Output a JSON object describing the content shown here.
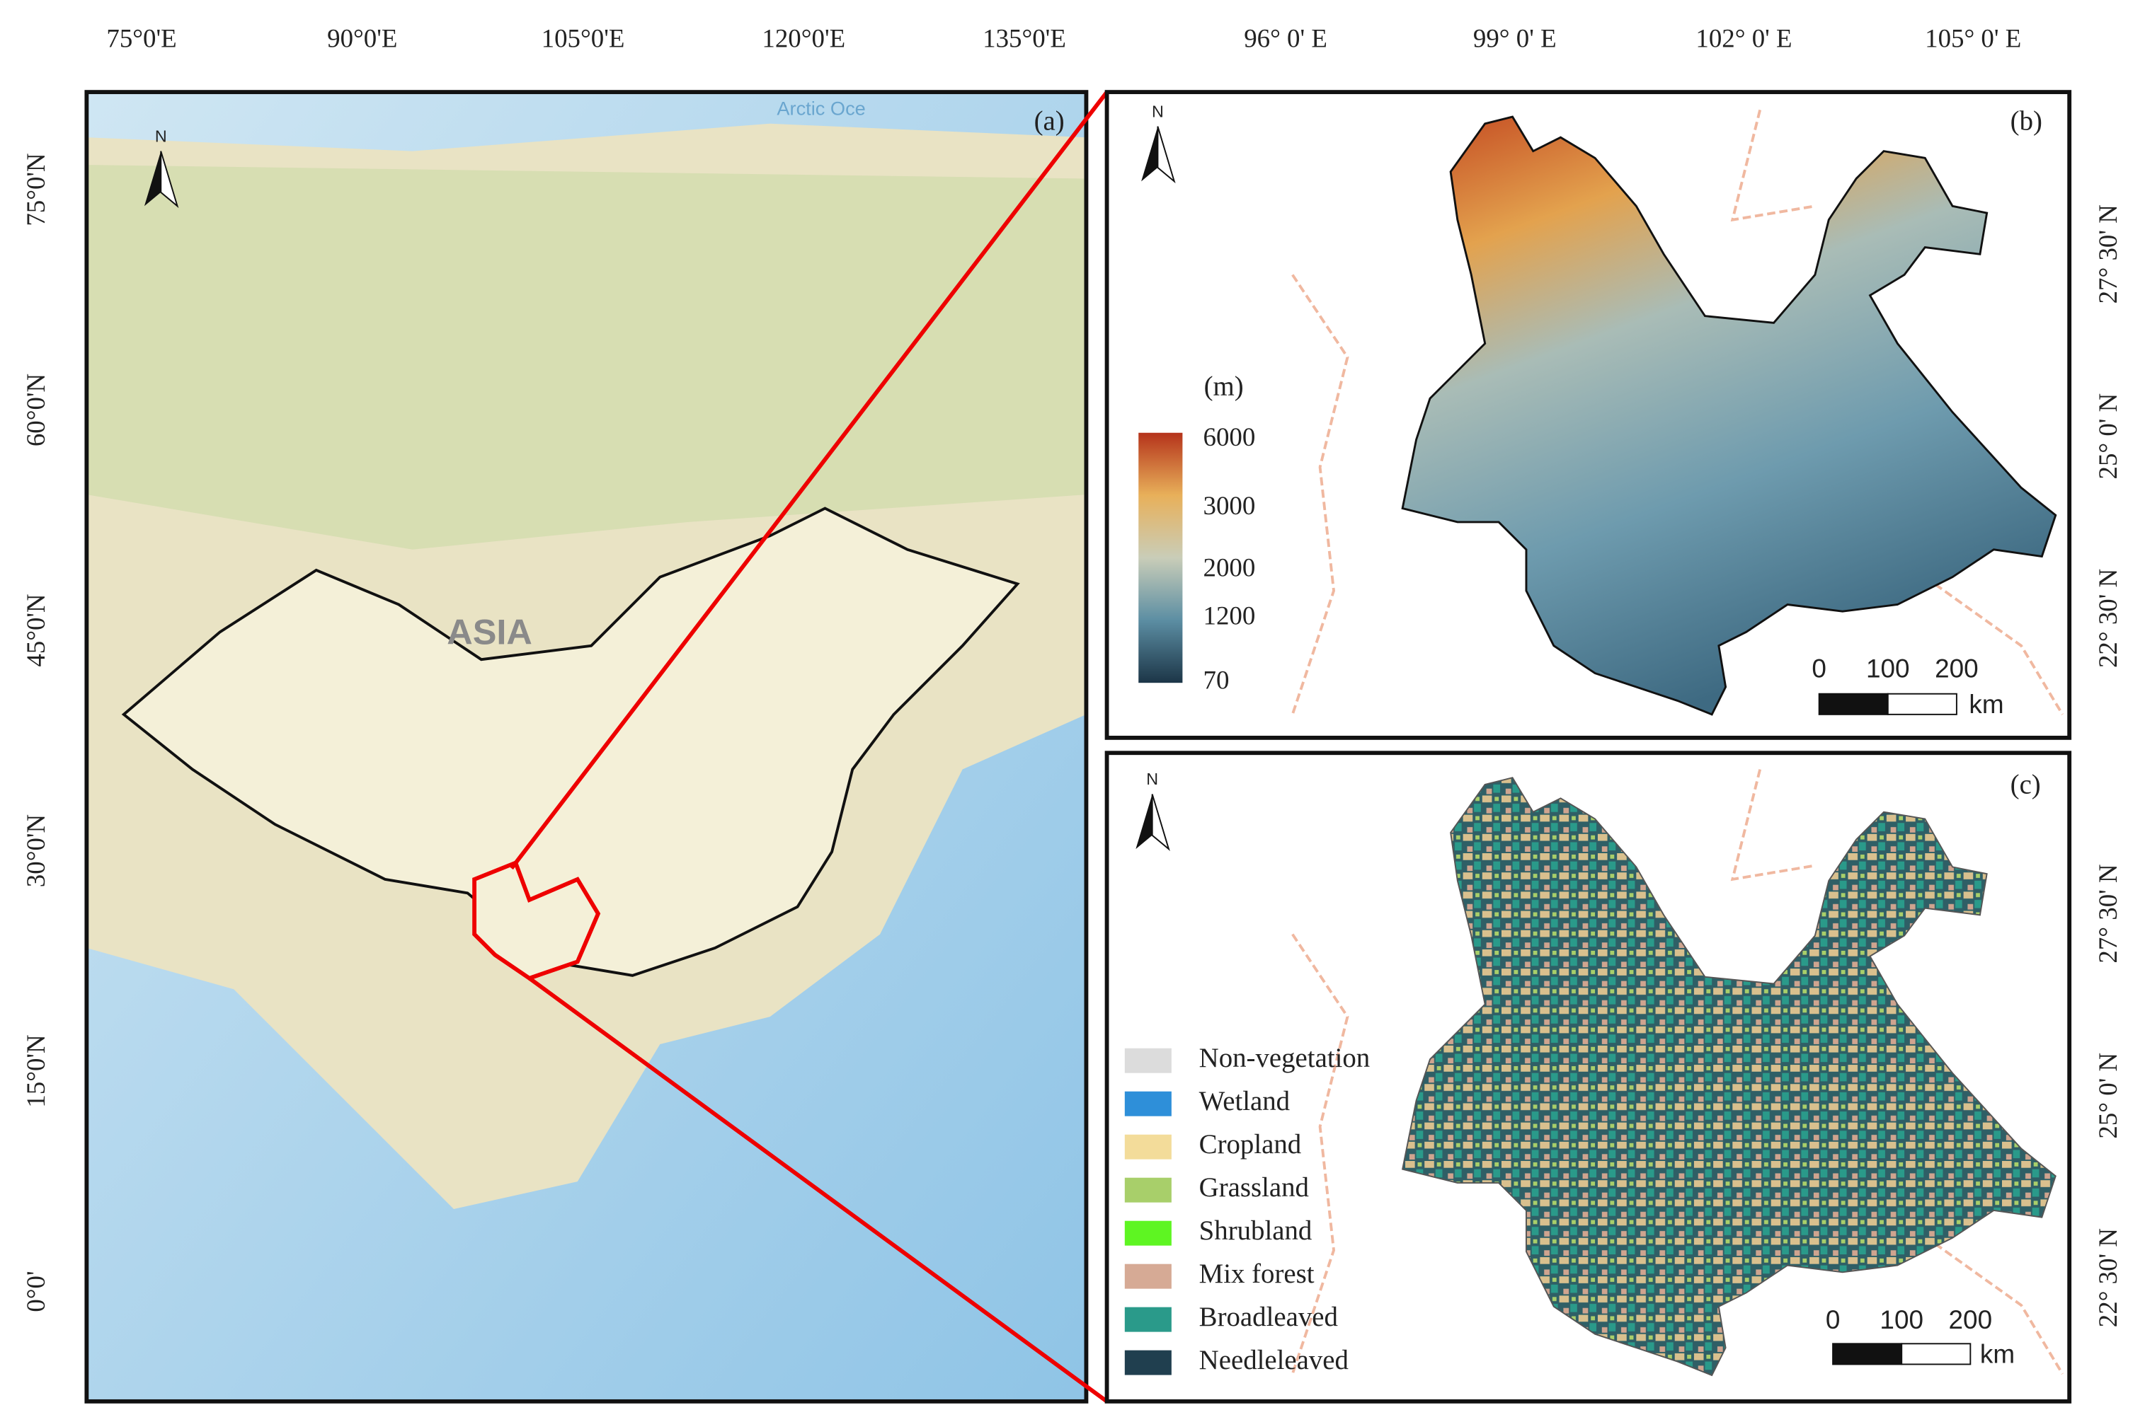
{
  "panel_a": {
    "label": "(a)",
    "north": "N",
    "x_ticks": [
      "75°0'E",
      "90°0'E",
      "105°0'E",
      "120°0'E",
      "135°0'E"
    ],
    "y_ticks": [
      "75°0'N",
      "60°0'N",
      "45°0'N",
      "30°0'N",
      "15°0'N",
      "0°0'"
    ],
    "map_labels": [
      "ASIA",
      "Arctic Oce"
    ]
  },
  "panel_b": {
    "label": "(b)",
    "north": "N",
    "x_ticks": [
      "96° 0' E",
      "99° 0' E",
      "102° 0' E",
      "105° 0' E"
    ],
    "y_ticks": [
      "27° 30' N",
      "25° 0' N",
      "22° 30' N"
    ],
    "legend_title": "(m)",
    "legend_ticks": [
      6000,
      3000,
      2000,
      1200,
      70
    ],
    "scale_ticks": [
      0,
      100,
      200
    ],
    "scale_unit": "km"
  },
  "panel_c": {
    "label": "(c)",
    "north": "N",
    "y_ticks": [
      "27° 30' N",
      "25° 0' N",
      "22° 30' N"
    ],
    "legend": [
      {
        "name": "Non-vegetation",
        "color": "#dcdcdc"
      },
      {
        "name": "Wetland",
        "color": "#2e8fd9"
      },
      {
        "name": "Cropland",
        "color": "#f3dc9a"
      },
      {
        "name": "Grassland",
        "color": "#a8cf6a"
      },
      {
        "name": "Shrubland",
        "color": "#5ef522"
      },
      {
        "name": "Mix forest",
        "color": "#d6aa95"
      },
      {
        "name": "Broadleaved",
        "color": "#2a9a8a"
      },
      {
        "name": "Needleleaved",
        "color": "#203f4f"
      }
    ],
    "scale_ticks": [
      0,
      100,
      200
    ],
    "scale_unit": "km"
  }
}
